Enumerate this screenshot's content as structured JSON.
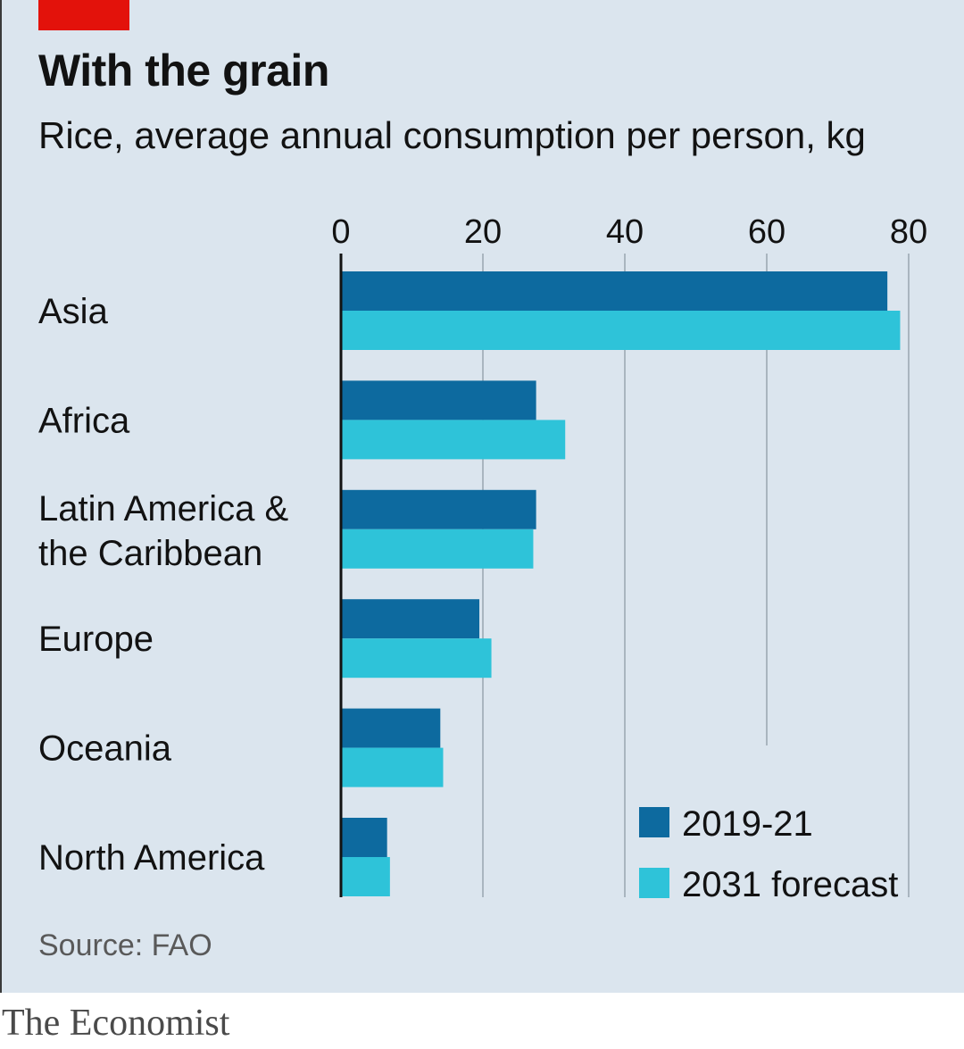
{
  "header": {
    "title": "With the grain",
    "subtitle": "Rice, average annual consumption per person, kg"
  },
  "footer": {
    "source": "Source: FAO",
    "brand": "The Economist"
  },
  "colors": {
    "background": "#dbe5ee",
    "accent": "#e3120b",
    "series_2019": "#0d6a9f",
    "series_2031": "#2ec3d9",
    "grid": "#a9b5bf"
  },
  "chart_data": {
    "type": "bar",
    "orientation": "horizontal",
    "title": "With the grain",
    "subtitle": "Rice, average annual consumption per person, kg",
    "categories": [
      [
        "Asia"
      ],
      [
        "Africa"
      ],
      [
        "Latin America &",
        "the Caribbean"
      ],
      [
        "Europe"
      ],
      [
        "Oceania"
      ],
      [
        "North America"
      ]
    ],
    "series": [
      {
        "name": "2019-21",
        "color": "#0d6a9f",
        "values": [
          77,
          27.5,
          27.5,
          19.5,
          14,
          6.5
        ]
      },
      {
        "name": "2031 forecast",
        "color": "#2ec3d9",
        "values": [
          78.8,
          31.6,
          27.1,
          21.2,
          14.4,
          6.9
        ]
      }
    ],
    "xlim": [
      0,
      80
    ],
    "xticks": [
      0,
      20,
      40,
      60,
      80
    ],
    "grid": true,
    "legend_position": "bottom-right",
    "source": "Source: FAO"
  }
}
